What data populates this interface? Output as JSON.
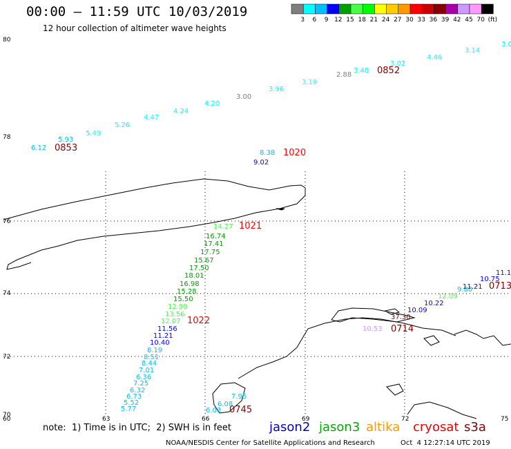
{
  "title": "00:00 – 11:59 UTC 10/03/2019",
  "subtitle": "12 hour collection of altimeter wave heights",
  "colorbar": {
    "colors": [
      "#7f7f7f",
      "#00ffff",
      "#00bfff",
      "#0000ff",
      "#00a000",
      "#44ff44",
      "#00ff00",
      "#ffff00",
      "#ffcc00",
      "#ff9900",
      "#ff0000",
      "#cc0000",
      "#880000",
      "#aa00aa",
      "#cc99ff",
      "#ff99ff",
      "#000000"
    ],
    "labels": [
      "3",
      "6",
      "9",
      "12",
      "15",
      "18",
      "21",
      "24",
      "27",
      "30",
      "33",
      "36",
      "39",
      "42",
      "45",
      "70",
      "(ft)"
    ]
  },
  "axes": {
    "lat_labels": [
      "80",
      "78",
      "76",
      "74",
      "72",
      "70"
    ],
    "lon_labels": [
      "60",
      "63",
      "66",
      "69",
      "72",
      "75"
    ]
  },
  "tracks": [
    {
      "name": "track-0853-0852",
      "points": [
        {
          "v": "6.12",
          "c": "#00bfff"
        },
        {
          "v": "5.93",
          "c": "#00bfff"
        },
        {
          "v": "5.49",
          "c": "#00ffff"
        },
        {
          "v": "5.26",
          "c": "#00ffff"
        },
        {
          "v": "4.47",
          "c": "#00ffff"
        },
        {
          "v": "4.24",
          "c": "#00ffff"
        },
        {
          "v": "4.20",
          "c": "#00ffff"
        },
        {
          "v": "3.00",
          "c": "#7f7f7f"
        },
        {
          "v": "3.96",
          "c": "#00ffff"
        },
        {
          "v": "3.19",
          "c": "#00ffff"
        },
        {
          "v": "2.88",
          "c": "#7f7f7f"
        },
        {
          "v": "3.48",
          "c": "#00ffff"
        },
        {
          "v": "3.02",
          "c": "#00ffff"
        },
        {
          "v": "4.46",
          "c": "#00ffff"
        },
        {
          "v": "3.14",
          "c": "#00ffff"
        },
        {
          "v": "3.0",
          "c": "#00ffff"
        }
      ],
      "time_labels": [
        {
          "t": "0853",
          "c": "#880000"
        },
        {
          "t": "0852",
          "c": "#880000"
        }
      ]
    },
    {
      "name": "track-1020",
      "points": [
        {
          "v": "8.38",
          "c": "#00bfff"
        },
        {
          "v": "9.02",
          "c": "#0000ff"
        }
      ],
      "time_labels": [
        {
          "t": "1020",
          "c": "#ff0000"
        }
      ]
    },
    {
      "name": "track-1021-1022",
      "points": [
        {
          "v": "14.27",
          "c": "#44ff44"
        },
        {
          "v": "16.74",
          "c": "#00a000"
        },
        {
          "v": "17.41",
          "c": "#00a000"
        },
        {
          "v": "17.75",
          "c": "#00a000"
        },
        {
          "v": "15.67",
          "c": "#00a000"
        },
        {
          "v": "17.50",
          "c": "#00a000"
        },
        {
          "v": "18.01",
          "c": "#00a000"
        },
        {
          "v": "16.98",
          "c": "#00a000"
        },
        {
          "v": "15.28",
          "c": "#00a000"
        },
        {
          "v": "15.50",
          "c": "#00a000"
        },
        {
          "v": "12.99",
          "c": "#44ff44"
        },
        {
          "v": "13.56",
          "c": "#44ff44"
        },
        {
          "v": "12.07",
          "c": "#44ff44"
        },
        {
          "v": "11.56",
          "c": "#0000ff"
        },
        {
          "v": "11.21",
          "c": "#0000ff"
        },
        {
          "v": "10.40",
          "c": "#0000ff"
        },
        {
          "v": "8.19",
          "c": "#00bfff"
        },
        {
          "v": "8.51",
          "c": "#00bfff"
        },
        {
          "v": "8.44",
          "c": "#00bfff"
        },
        {
          "v": "7.01",
          "c": "#00bfff"
        },
        {
          "v": "6.36",
          "c": "#00bfff"
        },
        {
          "v": "7.25",
          "c": "#00bfff"
        },
        {
          "v": "6.32",
          "c": "#00bfff"
        },
        {
          "v": "6.73",
          "c": "#00bfff"
        },
        {
          "v": "5.52",
          "c": "#00bfff"
        },
        {
          "v": "5.77",
          "c": "#00bfff"
        }
      ],
      "time_labels": [
        {
          "t": "1021",
          "c": "#ff0000"
        },
        {
          "t": "1022",
          "c": "#ff0000"
        }
      ]
    },
    {
      "name": "track-0745",
      "points": [
        {
          "v": "7.95",
          "c": "#00bfff"
        },
        {
          "v": "6.08",
          "c": "#00bfff"
        },
        {
          "v": "6.03",
          "c": "#00bfff"
        }
      ],
      "time_labels": [
        {
          "t": "0745",
          "c": "#880000"
        }
      ]
    },
    {
      "name": "track-0714-0713",
      "points": [
        {
          "v": "37.30",
          "c": "#880000"
        },
        {
          "v": "10.53",
          "c": "#cc99ff"
        },
        {
          "v": "10.09",
          "c": "#0000ff"
        },
        {
          "v": "10.22",
          "c": "#0000ff"
        },
        {
          "v": "12.09",
          "c": "#44ff44"
        },
        {
          "v": "9.80",
          "c": "#00bfff"
        },
        {
          "v": "11.21",
          "c": "#0000ff"
        },
        {
          "v": "10.75",
          "c": "#0000ff"
        },
        {
          "v": "11.1",
          "c": "#0000ff"
        }
      ],
      "time_labels": [
        {
          "t": "0714",
          "c": "#880000"
        },
        {
          "t": "0713",
          "c": "#880000"
        }
      ]
    }
  ],
  "footer": {
    "note": "note:  1) Time is in UTC;  2) SWH is in feet",
    "missions": [
      {
        "label": "jason2",
        "color": "#0000cc"
      },
      {
        "label": "jason3",
        "color": "#00aa00"
      },
      {
        "label": "altika",
        "color": "#ff9900"
      },
      {
        "label": "cryosat",
        "color": "#ee0000"
      },
      {
        "label": "s3a",
        "color": "#880000"
      }
    ],
    "credit": "NOAA/NESDIS Center for Satellite Applications and Research",
    "generated": "Oct  4 12:27:14 UTC 2019"
  }
}
